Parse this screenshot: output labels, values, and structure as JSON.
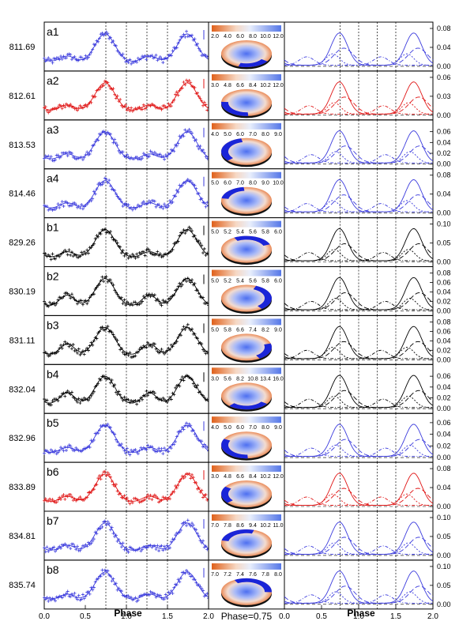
{
  "chart_data": {
    "type": "line",
    "title": "",
    "xlabel_left": "Phase",
    "xlabel_right": "Phase",
    "disk_caption": "Phase=0.75",
    "xlim": [
      0.0,
      2.0
    ],
    "xticks": [
      "0.0",
      "0.5",
      "1.0",
      "1.5",
      "2.0"
    ],
    "vlines": [
      0.75,
      1.0,
      1.25,
      1.5
    ],
    "grid": false,
    "panels": [
      {
        "label": "a1",
        "epoch": "811.69",
        "color": "#3b3bdd",
        "colorbar": [
          "2.0",
          "4.0",
          "6.0",
          "8.0",
          "10.0",
          "12.0"
        ],
        "right_ticks": [
          "0.08",
          "0.04",
          "0.00"
        ],
        "right_max": 0.08
      },
      {
        "label": "a2",
        "epoch": "812.61",
        "color": "#e01515",
        "colorbar": [
          "3.0",
          "4.8",
          "6.6",
          "8.4",
          "10.2",
          "12.0"
        ],
        "right_ticks": [
          "0.06",
          "0.03",
          "0.00"
        ],
        "right_max": 0.06
      },
      {
        "label": "a3",
        "epoch": "813.53",
        "color": "#3b3bdd",
        "colorbar": [
          "4.0",
          "5.0",
          "6.0",
          "7.0",
          "8.0",
          "9.0"
        ],
        "right_ticks": [
          "0.06",
          "0.04",
          "0.02",
          "0.00"
        ],
        "right_max": 0.07
      },
      {
        "label": "a4",
        "epoch": "814.46",
        "color": "#3b3bdd",
        "colorbar": [
          "5.0",
          "6.0",
          "7.0",
          "8.0",
          "9.0",
          "10.0"
        ],
        "right_ticks": [
          "0.08",
          "0.04",
          "0.00"
        ],
        "right_max": 0.08
      },
      {
        "label": "b1",
        "epoch": "829.26",
        "color": "#000000",
        "colorbar": [
          "5.0",
          "5.2",
          "5.4",
          "5.6",
          "5.8",
          "6.0"
        ],
        "right_ticks": [
          "0.10",
          "0.05",
          "0.00"
        ],
        "right_max": 0.1
      },
      {
        "label": "b2",
        "epoch": "830.19",
        "color": "#000000",
        "colorbar": [
          "5.0",
          "5.2",
          "5.4",
          "5.6",
          "5.8",
          "6.0"
        ],
        "right_ticks": [
          "0.08",
          "0.06",
          "0.04",
          "0.02",
          "0.00"
        ],
        "right_max": 0.08
      },
      {
        "label": "b3",
        "epoch": "831.11",
        "color": "#000000",
        "colorbar": [
          "5.0",
          "5.8",
          "6.6",
          "7.4",
          "8.2",
          "9.0"
        ],
        "right_ticks": [
          "0.08",
          "0.06",
          "0.04",
          "0.02",
          "0.00"
        ],
        "right_max": 0.08
      },
      {
        "label": "b4",
        "epoch": "832.04",
        "color": "#000000",
        "colorbar": [
          "3.0",
          "5.6",
          "8.2",
          "10.8",
          "13.4",
          "16.0"
        ],
        "right_ticks": [
          "0.06",
          "0.04",
          "0.02",
          "0.00"
        ],
        "right_max": 0.07
      },
      {
        "label": "b5",
        "epoch": "832.96",
        "color": "#3b3bdd",
        "colorbar": [
          "4.0",
          "5.0",
          "6.0",
          "7.0",
          "8.0",
          "9.0"
        ],
        "right_ticks": [
          "0.06",
          "0.04",
          "0.02",
          "0.00"
        ],
        "right_max": 0.065
      },
      {
        "label": "b6",
        "epoch": "833.89",
        "color": "#e01515",
        "colorbar": [
          "3.0",
          "4.8",
          "6.6",
          "8.4",
          "10.2",
          "12.0"
        ],
        "right_ticks": [
          "0.08",
          "0.04",
          "0.00"
        ],
        "right_max": 0.08
      },
      {
        "label": "b7",
        "epoch": "834.81",
        "color": "#3b3bdd",
        "colorbar": [
          "7.0",
          "7.8",
          "8.6",
          "9.4",
          "10.2",
          "11.0"
        ],
        "right_ticks": [
          "0.10",
          "0.05",
          "0.00"
        ],
        "right_max": 0.1
      },
      {
        "label": "b8",
        "epoch": "835.74",
        "color": "#3b3bdd",
        "colorbar": [
          "7.0",
          "7.2",
          "7.4",
          "7.6",
          "7.8",
          "8.0"
        ],
        "right_ticks": [
          "0.10",
          "0.05",
          "0.00"
        ],
        "right_max": 0.1
      }
    ]
  }
}
